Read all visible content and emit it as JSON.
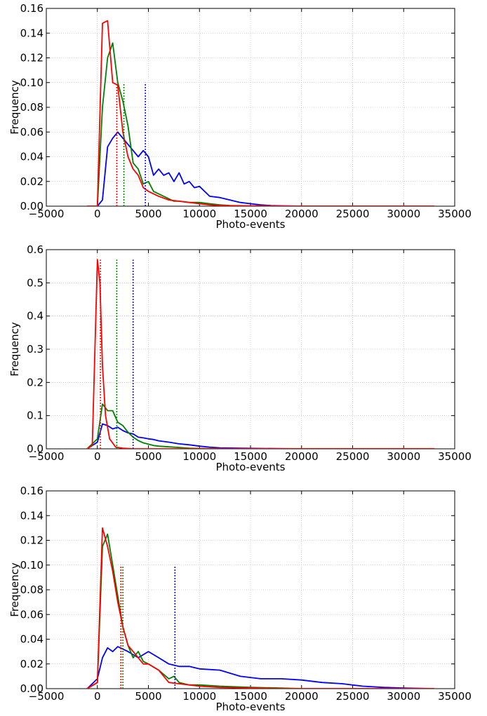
{
  "chart_data": [
    {
      "type": "line",
      "xlabel": "Photo-events",
      "ylabel": "Frequency",
      "xlim": [
        -5000,
        35000
      ],
      "ylim": [
        0,
        0.16
      ],
      "xticks": [
        "−5000",
        "0",
        "5000",
        "10000",
        "15000",
        "20000",
        "25000",
        "30000",
        "35000"
      ],
      "yticks": [
        "0.00",
        "0.02",
        "0.04",
        "0.06",
        "0.08",
        "0.10",
        "0.12",
        "0.14",
        "0.16"
      ],
      "grid": true,
      "series": [
        {
          "color": "#0000ff",
          "x": [
            -1000,
            0,
            500,
            1000,
            1500,
            2000,
            2500,
            3000,
            3500,
            4000,
            4500,
            5000,
            5500,
            6000,
            6500,
            7000,
            7500,
            8000,
            8500,
            9000,
            9500,
            10000,
            11000,
            12000,
            13000,
            14000,
            15000,
            16000,
            17000,
            18000,
            20000,
            25000,
            30000,
            33000
          ],
          "y": [
            0,
            0,
            0.005,
            0.048,
            0.055,
            0.06,
            0.055,
            0.05,
            0.045,
            0.04,
            0.045,
            0.04,
            0.025,
            0.03,
            0.025,
            0.027,
            0.02,
            0.027,
            0.018,
            0.02,
            0.015,
            0.016,
            0.008,
            0.007,
            0.005,
            0.003,
            0.002,
            0.001,
            0.0005,
            0.0003,
            0,
            0,
            0,
            0
          ]
        },
        {
          "color": "#008000",
          "x": [
            -1000,
            0,
            500,
            1000,
            1500,
            2000,
            2500,
            3000,
            3500,
            4000,
            4500,
            5000,
            5500,
            6000,
            6500,
            7000,
            7500,
            8000,
            9000,
            10000,
            11000,
            12000,
            13000,
            15000,
            20000,
            25000,
            30000,
            33000
          ],
          "y": [
            0,
            0,
            0.08,
            0.12,
            0.132,
            0.1,
            0.085,
            0.065,
            0.035,
            0.03,
            0.018,
            0.02,
            0.012,
            0.01,
            0.008,
            0.006,
            0.004,
            0.004,
            0.003,
            0.003,
            0.002,
            0.001,
            0.0005,
            0.0003,
            0,
            0,
            0,
            0
          ]
        },
        {
          "color": "#ff0000",
          "x": [
            -1000,
            0,
            500,
            1000,
            1500,
            2000,
            2500,
            3000,
            3500,
            4000,
            4500,
            5000,
            5500,
            6000,
            7000,
            8000,
            9000,
            10000,
            11000,
            12000,
            15000,
            20000,
            25000,
            30000,
            33000
          ],
          "y": [
            0,
            0,
            0.148,
            0.15,
            0.1,
            0.098,
            0.06,
            0.04,
            0.03,
            0.025,
            0.015,
            0.012,
            0.01,
            0.008,
            0.005,
            0.004,
            0.003,
            0.002,
            0.001,
            0.0005,
            0.0002,
            0,
            0,
            0,
            0
          ]
        }
      ],
      "vlines": [
        {
          "color": "#0000ff",
          "x": 4700,
          "y": 0.1
        },
        {
          "color": "#008000",
          "x": 2600,
          "y": 0.1
        },
        {
          "color": "#ff0000",
          "x": 1900,
          "y": 0.1
        }
      ]
    },
    {
      "type": "line",
      "xlabel": "Photo-events",
      "ylabel": "Frequency",
      "xlim": [
        -5000,
        35000
      ],
      "ylim": [
        0,
        0.6
      ],
      "xticks": [
        "−5000",
        "0",
        "5000",
        "10000",
        "15000",
        "20000",
        "25000",
        "30000",
        "35000"
      ],
      "yticks": [
        "0.0",
        "0.1",
        "0.2",
        "0.3",
        "0.4",
        "0.5",
        "0.6"
      ],
      "grid": true,
      "series": [
        {
          "color": "#0000ff",
          "x": [
            -1000,
            0,
            500,
            1000,
            1500,
            2000,
            2500,
            3000,
            3500,
            4000,
            4500,
            5000,
            5500,
            6000,
            7000,
            8000,
            9000,
            10000,
            11000,
            12000,
            14000,
            16000,
            20000,
            25000,
            33000
          ],
          "y": [
            0,
            0.02,
            0.075,
            0.07,
            0.06,
            0.065,
            0.055,
            0.048,
            0.045,
            0.035,
            0.033,
            0.03,
            0.028,
            0.024,
            0.02,
            0.015,
            0.012,
            0.008,
            0.005,
            0.003,
            0.002,
            0.001,
            0,
            0,
            0
          ]
        },
        {
          "color": "#008000",
          "x": [
            -1000,
            0,
            500,
            1000,
            1500,
            2000,
            2500,
            3000,
            3500,
            4000,
            4500,
            5000,
            5500,
            6000,
            7000,
            8000,
            9000,
            10000,
            12000,
            15000,
            20000,
            33000
          ],
          "y": [
            0,
            0.03,
            0.135,
            0.115,
            0.115,
            0.08,
            0.07,
            0.05,
            0.035,
            0.025,
            0.018,
            0.014,
            0.01,
            0.008,
            0.006,
            0.004,
            0.002,
            0.001,
            0.0005,
            0,
            0,
            0
          ]
        },
        {
          "color": "#ff0000",
          "x": [
            -1000,
            -500,
            0,
            250,
            500,
            800,
            1200,
            1800,
            2500,
            3500,
            5000,
            10000,
            20000,
            33000
          ],
          "y": [
            0,
            0.01,
            0.57,
            0.5,
            0.25,
            0.1,
            0.03,
            0.005,
            0.002,
            0,
            0,
            0,
            0,
            0
          ]
        }
      ],
      "vlines": [
        {
          "color": "#0000ff",
          "x": 3500,
          "y": 0.57
        },
        {
          "color": "#008000",
          "x": 1900,
          "y": 0.57
        },
        {
          "color": "#ff0000",
          "x": 300,
          "y": 0.57
        }
      ]
    },
    {
      "type": "line",
      "xlabel": "Photo-events",
      "ylabel": "Frequency",
      "xlim": [
        -5000,
        35000
      ],
      "ylim": [
        0,
        0.16
      ],
      "xticks": [
        "−5000",
        "0",
        "5000",
        "10000",
        "15000",
        "20000",
        "25000",
        "30000",
        "35000"
      ],
      "yticks": [
        "0.00",
        "0.02",
        "0.04",
        "0.06",
        "0.08",
        "0.10",
        "0.12",
        "0.14",
        "0.16"
      ],
      "grid": true,
      "series": [
        {
          "color": "#0000ff",
          "x": [
            -1000,
            0,
            500,
            1000,
            1500,
            2000,
            2500,
            3000,
            4000,
            5000,
            6000,
            7000,
            8000,
            9000,
            10000,
            12000,
            14000,
            16000,
            18000,
            20000,
            22000,
            24000,
            26000,
            28000,
            30000,
            33000
          ],
          "y": [
            0,
            0.008,
            0.025,
            0.033,
            0.03,
            0.034,
            0.032,
            0.03,
            0.025,
            0.03,
            0.025,
            0.02,
            0.018,
            0.018,
            0.016,
            0.015,
            0.01,
            0.008,
            0.008,
            0.007,
            0.005,
            0.004,
            0.002,
            0.001,
            0.0005,
            0
          ]
        },
        {
          "color": "#008000",
          "x": [
            -1000,
            0,
            500,
            1000,
            1500,
            2000,
            2500,
            3000,
            3500,
            4000,
            4500,
            5000,
            6000,
            7000,
            7500,
            8000,
            9000,
            10000,
            12000,
            15000,
            18000,
            20000,
            33000
          ],
          "y": [
            0,
            0.005,
            0.115,
            0.125,
            0.1,
            0.075,
            0.05,
            0.035,
            0.025,
            0.03,
            0.022,
            0.02,
            0.015,
            0.008,
            0.01,
            0.005,
            0.003,
            0.003,
            0.002,
            0.001,
            0.0005,
            0,
            0
          ]
        },
        {
          "color": "#ff0000",
          "x": [
            -1000,
            0,
            500,
            1000,
            1500,
            2000,
            2500,
            3000,
            3500,
            4000,
            4500,
            5000,
            6000,
            7000,
            8000,
            9000,
            10000,
            12000,
            15000,
            18000,
            20000,
            33000
          ],
          "y": [
            0,
            0.005,
            0.13,
            0.115,
            0.095,
            0.07,
            0.05,
            0.035,
            0.03,
            0.025,
            0.02,
            0.02,
            0.015,
            0.005,
            0.004,
            0.003,
            0.002,
            0.001,
            0.0005,
            0,
            0,
            0
          ]
        }
      ],
      "vlines": [
        {
          "color": "#0000ff",
          "x": 7600,
          "y": 0.1
        },
        {
          "color": "#008000",
          "x": 2500,
          "y": 0.1
        },
        {
          "color": "#ff0000",
          "x": 2300,
          "y": 0.1
        }
      ]
    }
  ]
}
